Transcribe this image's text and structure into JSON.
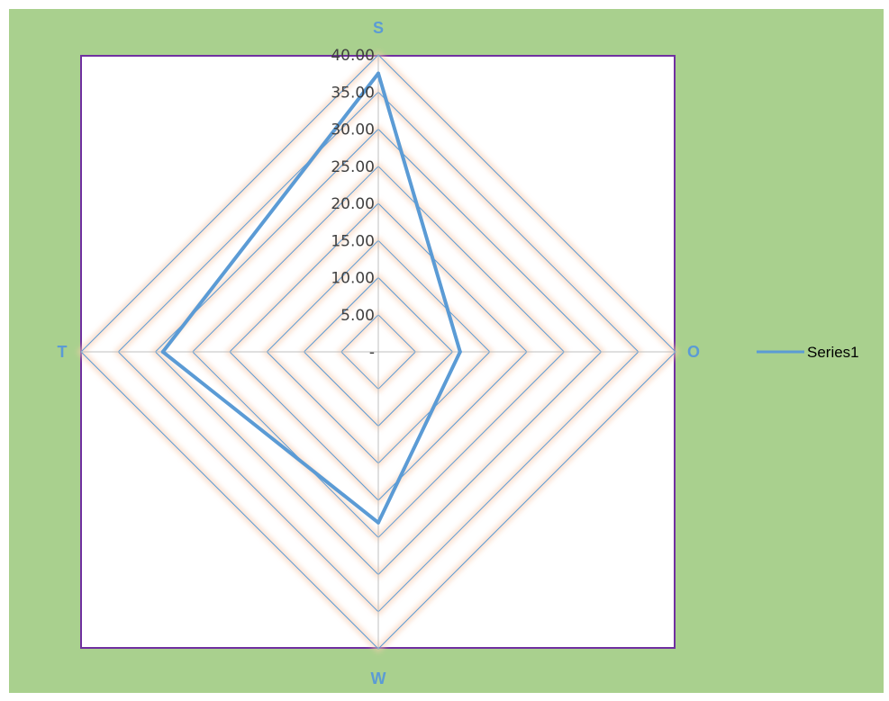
{
  "chart_data": {
    "type": "radar",
    "categories": [
      "S",
      "O",
      "W",
      "T"
    ],
    "series": [
      {
        "name": "Series1",
        "values": [
          37.5,
          11.0,
          23.0,
          29.0
        ]
      }
    ],
    "rlim": [
      0,
      40
    ],
    "tick_step": 5,
    "tick_labels": [
      "-",
      "5.00",
      "10.00",
      "15.00",
      "20.00",
      "25.00",
      "30.00",
      "35.00",
      "40.00"
    ],
    "grid": true,
    "legend_position": "right",
    "colors": {
      "background": "#a9d08e",
      "plot_area": "#ffffff",
      "plot_border": "#7030a0",
      "gridline": "#5b9bd5",
      "series": "#5b9bd5",
      "axis_labels": "#5b9bd5"
    }
  }
}
